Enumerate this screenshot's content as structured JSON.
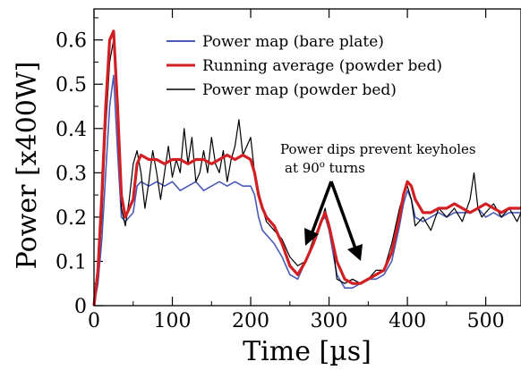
{
  "chart_data": {
    "type": "line",
    "xlabel": "Time [µs]",
    "ylabel": "Power [x400W]",
    "xlim": [
      0,
      545
    ],
    "ylim": [
      0,
      0.67
    ],
    "xticks": [
      0,
      100,
      200,
      300,
      400,
      500
    ],
    "yticks": [
      0,
      0.1,
      0.2,
      0.3,
      0.4,
      0.5,
      0.6
    ],
    "legend_position": "top-right",
    "annotation": {
      "line1": "Power dips prevent keyholes",
      "line2_prefix": "at 90",
      "line2_sup": "o",
      "line2_suffix": " turns"
    },
    "series": [
      {
        "name": "Power map (bare plate)",
        "color": "#4a5ab8",
        "x": [
          0,
          5,
          10,
          15,
          20,
          25,
          30,
          35,
          40,
          45,
          50,
          55,
          60,
          70,
          80,
          90,
          100,
          110,
          120,
          130,
          140,
          150,
          160,
          170,
          180,
          190,
          200,
          205,
          210,
          215,
          220,
          230,
          240,
          250,
          260,
          270,
          280,
          290,
          295,
          300,
          310,
          320,
          330,
          340,
          350,
          360,
          370,
          380,
          390,
          395,
          400,
          405,
          410,
          420,
          430,
          440,
          450,
          460,
          470,
          480,
          490,
          500,
          510,
          520,
          530,
          540,
          545
        ],
        "y": [
          0,
          0.05,
          0.15,
          0.3,
          0.45,
          0.52,
          0.35,
          0.2,
          0.19,
          0.2,
          0.21,
          0.27,
          0.28,
          0.27,
          0.28,
          0.27,
          0.28,
          0.26,
          0.27,
          0.28,
          0.26,
          0.27,
          0.28,
          0.27,
          0.28,
          0.27,
          0.27,
          0.25,
          0.2,
          0.17,
          0.16,
          0.14,
          0.11,
          0.07,
          0.06,
          0.1,
          0.14,
          0.19,
          0.2,
          0.17,
          0.07,
          0.04,
          0.04,
          0.05,
          0.06,
          0.06,
          0.07,
          0.1,
          0.18,
          0.23,
          0.26,
          0.24,
          0.2,
          0.19,
          0.2,
          0.21,
          0.2,
          0.21,
          0.21,
          0.21,
          0.22,
          0.2,
          0.21,
          0.2,
          0.21,
          0.21,
          0.21
        ]
      },
      {
        "name": "Running average (powder bed)",
        "color": "#d21f24",
        "x": [
          0,
          5,
          10,
          15,
          20,
          25,
          30,
          35,
          40,
          45,
          50,
          55,
          60,
          70,
          80,
          90,
          100,
          110,
          120,
          130,
          140,
          150,
          160,
          170,
          180,
          190,
          200,
          205,
          210,
          215,
          220,
          230,
          240,
          250,
          260,
          270,
          280,
          290,
          295,
          300,
          310,
          320,
          330,
          340,
          350,
          360,
          370,
          380,
          390,
          395,
          400,
          405,
          410,
          420,
          430,
          440,
          450,
          460,
          470,
          480,
          490,
          500,
          510,
          520,
          530,
          540,
          545
        ],
        "y": [
          0,
          0.08,
          0.25,
          0.45,
          0.6,
          0.62,
          0.45,
          0.25,
          0.2,
          0.22,
          0.24,
          0.32,
          0.34,
          0.33,
          0.33,
          0.32,
          0.33,
          0.33,
          0.32,
          0.33,
          0.33,
          0.32,
          0.33,
          0.34,
          0.33,
          0.34,
          0.33,
          0.3,
          0.25,
          0.22,
          0.2,
          0.18,
          0.14,
          0.09,
          0.07,
          0.1,
          0.14,
          0.19,
          0.21,
          0.18,
          0.1,
          0.06,
          0.05,
          0.05,
          0.06,
          0.07,
          0.08,
          0.12,
          0.2,
          0.25,
          0.28,
          0.27,
          0.24,
          0.21,
          0.21,
          0.22,
          0.22,
          0.23,
          0.22,
          0.21,
          0.22,
          0.23,
          0.22,
          0.21,
          0.22,
          0.22,
          0.22
        ]
      },
      {
        "name": "Power map (powder bed)",
        "color": "#000000",
        "x": [
          0,
          5,
          10,
          15,
          20,
          25,
          30,
          35,
          40,
          45,
          50,
          55,
          60,
          65,
          70,
          75,
          80,
          85,
          90,
          95,
          100,
          105,
          110,
          115,
          120,
          125,
          130,
          135,
          140,
          145,
          150,
          155,
          160,
          165,
          170,
          175,
          180,
          185,
          190,
          195,
          200,
          205,
          210,
          215,
          220,
          230,
          240,
          250,
          260,
          270,
          280,
          290,
          295,
          300,
          305,
          310,
          320,
          330,
          340,
          350,
          360,
          370,
          380,
          390,
          395,
          400,
          405,
          410,
          420,
          430,
          440,
          450,
          460,
          470,
          480,
          485,
          490,
          495,
          500,
          510,
          520,
          530,
          540,
          545
        ],
        "y": [
          0,
          0.06,
          0.2,
          0.4,
          0.55,
          0.6,
          0.45,
          0.22,
          0.18,
          0.24,
          0.32,
          0.35,
          0.3,
          0.22,
          0.28,
          0.35,
          0.3,
          0.24,
          0.3,
          0.36,
          0.29,
          0.33,
          0.3,
          0.4,
          0.32,
          0.38,
          0.28,
          0.3,
          0.35,
          0.3,
          0.38,
          0.32,
          0.3,
          0.35,
          0.28,
          0.33,
          0.36,
          0.42,
          0.34,
          0.36,
          0.38,
          0.3,
          0.26,
          0.22,
          0.19,
          0.17,
          0.15,
          0.11,
          0.09,
          0.1,
          0.15,
          0.19,
          0.22,
          0.17,
          0.14,
          0.06,
          0.05,
          0.06,
          0.05,
          0.06,
          0.08,
          0.08,
          0.14,
          0.22,
          0.25,
          0.27,
          0.24,
          0.18,
          0.2,
          0.17,
          0.22,
          0.2,
          0.22,
          0.19,
          0.24,
          0.3,
          0.22,
          0.2,
          0.21,
          0.23,
          0.2,
          0.22,
          0.19,
          0.21
        ]
      }
    ]
  }
}
